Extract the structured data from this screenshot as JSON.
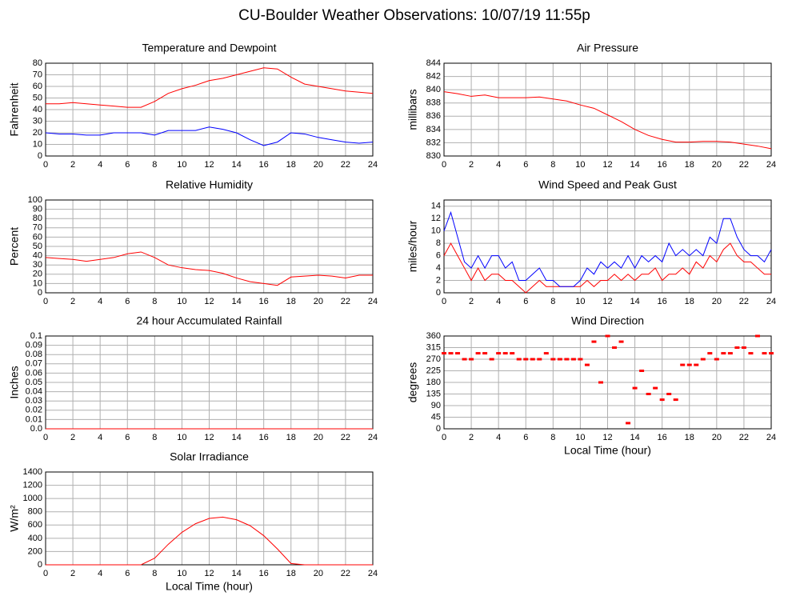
{
  "title": "CU-Boulder Weather Observations: 10/07/19 11:55p",
  "chart_data": [
    {
      "type": "line",
      "title": "Temperature and Dewpoint",
      "ylabel": "Fahrenheit",
      "x": [
        0,
        1,
        2,
        3,
        4,
        5,
        6,
        7,
        8,
        9,
        10,
        11,
        12,
        13,
        14,
        15,
        16,
        17,
        18,
        19,
        20,
        21,
        22,
        23,
        24
      ],
      "series": [
        {
          "color": "#ff0000",
          "values": [
            45,
            45,
            46,
            45,
            44,
            43,
            42,
            42,
            47,
            54,
            58,
            61,
            65,
            67,
            70,
            73,
            76,
            75,
            68,
            62,
            60,
            58,
            56,
            55,
            54
          ]
        },
        {
          "color": "#0000ff",
          "values": [
            20,
            19,
            19,
            18,
            18,
            20,
            20,
            20,
            18,
            22,
            22,
            22,
            25,
            23,
            20,
            14,
            9,
            12,
            20,
            19,
            16,
            14,
            12,
            11,
            12
          ]
        }
      ],
      "xlim": [
        0,
        24
      ],
      "xticks": [
        0,
        2,
        4,
        6,
        8,
        10,
        12,
        14,
        16,
        18,
        20,
        22,
        24
      ],
      "ylim": [
        0,
        80
      ],
      "yticks": [
        0,
        10,
        20,
        30,
        40,
        50,
        60,
        70,
        80
      ],
      "grid": true
    },
    {
      "type": "line",
      "title": "Air Pressure",
      "ylabel": "millibars",
      "x": [
        0,
        1,
        2,
        3,
        4,
        5,
        6,
        7,
        8,
        9,
        10,
        11,
        12,
        13,
        14,
        15,
        16,
        17,
        18,
        19,
        20,
        21,
        22,
        23,
        24
      ],
      "series": [
        {
          "color": "#ff0000",
          "values": [
            839.7,
            839.4,
            839.0,
            839.2,
            838.8,
            838.8,
            838.8,
            838.9,
            838.6,
            838.3,
            837.7,
            837.2,
            836.2,
            835.2,
            834.0,
            833.1,
            832.5,
            832.1,
            832.1,
            832.2,
            832.2,
            832.1,
            831.8,
            831.5,
            831.1
          ]
        }
      ],
      "xlim": [
        0,
        24
      ],
      "xticks": [
        0,
        2,
        4,
        6,
        8,
        10,
        12,
        14,
        16,
        18,
        20,
        22,
        24
      ],
      "ylim": [
        830,
        844
      ],
      "yticks": [
        830,
        832,
        834,
        836,
        838,
        840,
        842,
        844
      ],
      "grid": true
    },
    {
      "type": "line",
      "title": "Relative Humidity",
      "ylabel": "Percent",
      "x": [
        0,
        1,
        2,
        3,
        4,
        5,
        6,
        7,
        8,
        9,
        10,
        11,
        12,
        13,
        14,
        15,
        16,
        17,
        18,
        19,
        20,
        21,
        22,
        23,
        24
      ],
      "series": [
        {
          "color": "#ff0000",
          "values": [
            38,
            37,
            36,
            34,
            36,
            38,
            42,
            44,
            38,
            30,
            27,
            25,
            24,
            21,
            16,
            12,
            10,
            8,
            17,
            18,
            19,
            18,
            16,
            19,
            19
          ]
        }
      ],
      "xlim": [
        0,
        24
      ],
      "xticks": [
        0,
        2,
        4,
        6,
        8,
        10,
        12,
        14,
        16,
        18,
        20,
        22,
        24
      ],
      "ylim": [
        0,
        100
      ],
      "yticks": [
        0,
        10,
        20,
        30,
        40,
        50,
        60,
        70,
        80,
        90,
        100
      ],
      "grid": true
    },
    {
      "type": "line",
      "title": "Wind Speed and Peak Gust",
      "ylabel": "miles/hour",
      "x": [
        0,
        0.5,
        1,
        1.5,
        2,
        2.5,
        3,
        3.5,
        4,
        4.5,
        5,
        5.5,
        6,
        6.5,
        7,
        7.5,
        8,
        8.5,
        9,
        9.5,
        10,
        10.5,
        11,
        11.5,
        12,
        12.5,
        13,
        13.5,
        14,
        14.5,
        15,
        15.5,
        16,
        16.5,
        17,
        17.5,
        18,
        18.5,
        19,
        19.5,
        20,
        20.5,
        21,
        21.5,
        22,
        22.5,
        23,
        23.5,
        24
      ],
      "series": [
        {
          "color": "#ff0000",
          "values": [
            6,
            8,
            6,
            4,
            2,
            4,
            2,
            3,
            3,
            2,
            2,
            1,
            0,
            1,
            2,
            1,
            1,
            1,
            1,
            1,
            1,
            2,
            1,
            2,
            2,
            3,
            2,
            3,
            2,
            3,
            3,
            4,
            2,
            3,
            3,
            4,
            3,
            5,
            4,
            6,
            5,
            7,
            8,
            6,
            5,
            5,
            4,
            3,
            3
          ]
        },
        {
          "color": "#0000ff",
          "values": [
            10,
            13,
            9,
            5,
            4,
            6,
            4,
            6,
            6,
            4,
            5,
            2,
            2,
            3,
            4,
            2,
            2,
            1,
            1,
            1,
            2,
            4,
            3,
            5,
            4,
            5,
            4,
            6,
            4,
            6,
            5,
            6,
            5,
            8,
            6,
            7,
            6,
            7,
            6,
            9,
            8,
            12,
            12,
            9,
            7,
            6,
            6,
            5,
            7
          ]
        }
      ],
      "xlim": [
        0,
        24
      ],
      "xticks": [
        0,
        2,
        4,
        6,
        8,
        10,
        12,
        14,
        16,
        18,
        20,
        22,
        24
      ],
      "ylim": [
        0,
        15
      ],
      "yticks": [
        0,
        2,
        4,
        6,
        8,
        10,
        12,
        14
      ],
      "grid": true
    },
    {
      "type": "line",
      "title": "24 hour Accumulated Rainfall",
      "ylabel": "Inches",
      "x": [
        0,
        1,
        2,
        3,
        4,
        5,
        6,
        7,
        8,
        9,
        10,
        11,
        12,
        13,
        14,
        15,
        16,
        17,
        18,
        19,
        20,
        21,
        22,
        23,
        24
      ],
      "series": [
        {
          "color": "#ff0000",
          "values": [
            0,
            0,
            0,
            0,
            0,
            0,
            0,
            0,
            0,
            0,
            0,
            0,
            0,
            0,
            0,
            0,
            0,
            0,
            0,
            0,
            0,
            0,
            0,
            0,
            0
          ]
        }
      ],
      "xlim": [
        0,
        24
      ],
      "xticks": [
        0,
        2,
        4,
        6,
        8,
        10,
        12,
        14,
        16,
        18,
        20,
        22,
        24
      ],
      "ylim": [
        0,
        0.1
      ],
      "yticks": [
        {
          "value": 0,
          "label": "0.0"
        },
        0.01,
        0.02,
        0.03,
        0.04,
        0.05,
        0.06,
        0.07,
        0.08,
        0.09,
        0.1
      ],
      "grid": true
    },
    {
      "type": "scatter",
      "title": "Wind Direction",
      "ylabel": "degrees",
      "xlabel": "Local Time (hour)",
      "x": [
        0,
        0.5,
        1,
        1.5,
        2,
        2.5,
        3,
        3.5,
        4,
        4.5,
        5,
        5.5,
        6,
        6.5,
        7,
        7.5,
        8,
        8.5,
        9,
        9.5,
        10,
        10.5,
        11,
        11.5,
        12,
        12.5,
        13,
        13.5,
        14,
        14.5,
        15,
        15.5,
        16,
        16.5,
        17,
        17.5,
        18,
        18.5,
        19,
        19.5,
        20,
        20.5,
        21,
        21.5,
        22,
        22.5,
        23,
        23.5,
        24
      ],
      "series": [
        {
          "color": "#ff0000",
          "values": [
            293,
            293,
            293,
            270,
            270,
            293,
            293,
            270,
            293,
            293,
            293,
            270,
            270,
            270,
            270,
            293,
            270,
            270,
            270,
            270,
            270,
            248,
            338,
            180,
            360,
            315,
            338,
            22,
            158,
            225,
            135,
            158,
            113,
            135,
            113,
            248,
            248,
            248,
            270,
            293,
            270,
            293,
            293,
            315,
            315,
            293,
            360,
            293,
            293
          ]
        }
      ],
      "xlim": [
        0,
        24
      ],
      "xticks": [
        0,
        2,
        4,
        6,
        8,
        10,
        12,
        14,
        16,
        18,
        20,
        22,
        24
      ],
      "ylim": [
        0,
        360
      ],
      "yticks": [
        0,
        45,
        90,
        135,
        180,
        225,
        270,
        315,
        360
      ],
      "grid": true
    },
    {
      "type": "line",
      "title": "Solar Irradiance",
      "ylabel": "W/m²",
      "xlabel": "Local Time (hour)",
      "x": [
        0,
        1,
        2,
        3,
        4,
        5,
        6,
        7,
        8,
        9,
        10,
        11,
        12,
        13,
        14,
        15,
        16,
        17,
        18,
        19,
        20,
        21,
        22,
        23,
        24
      ],
      "series": [
        {
          "color": "#ff0000",
          "values": [
            0,
            0,
            0,
            0,
            0,
            0,
            0,
            0,
            100,
            310,
            490,
            620,
            700,
            720,
            680,
            590,
            440,
            240,
            20,
            0,
            0,
            0,
            0,
            0,
            0
          ]
        }
      ],
      "xlim": [
        0,
        24
      ],
      "xticks": [
        0,
        2,
        4,
        6,
        8,
        10,
        12,
        14,
        16,
        18,
        20,
        22,
        24
      ],
      "ylim": [
        0,
        1400
      ],
      "yticks": [
        0,
        200,
        400,
        600,
        800,
        1000,
        1200,
        1400
      ],
      "grid": true
    }
  ]
}
